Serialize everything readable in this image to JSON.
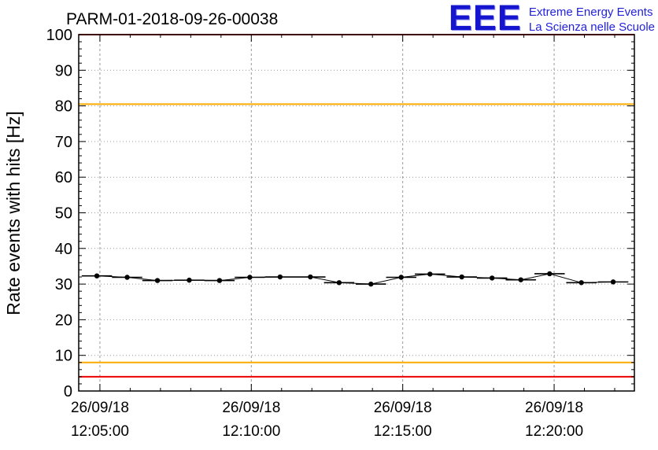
{
  "logo": {
    "wordmark": "EEE",
    "tagline1": "Extreme Energy Events",
    "tagline2": "La Scienza nelle Scuole"
  },
  "chart_data": {
    "type": "line",
    "title": "PARM-01-2018-09-26-00038",
    "ylabel": "Rate events with hits [Hz]",
    "xlabel": "",
    "ylim": [
      0,
      100
    ],
    "y_tick_step": 10,
    "y_minor_step": 2,
    "grid": true,
    "legend": "none",
    "x_range_minutes": [
      4.3,
      22.65
    ],
    "x_minor_step_minutes": 1,
    "x_major_ticks": [
      {
        "minute": 5,
        "date": "26/09/18",
        "time": "12:05:00"
      },
      {
        "minute": 10,
        "date": "26/09/18",
        "time": "12:10:00"
      },
      {
        "minute": 15,
        "date": "26/09/18",
        "time": "12:15:00"
      },
      {
        "minute": 20,
        "date": "26/09/18",
        "time": "12:20:00"
      }
    ],
    "threshold_lines": [
      {
        "y": 100,
        "color": "#ee0000"
      },
      {
        "y": 80.5,
        "color": "#ffaa00"
      },
      {
        "y": 8,
        "color": "#ffaa00"
      },
      {
        "y": 4,
        "color": "#ee0000"
      }
    ],
    "series": [
      {
        "name": "rate-events-with-hits",
        "color": "#000000",
        "marker": "circle",
        "xerr_minutes": 0.5,
        "points": [
          {
            "t": 4.9,
            "y": 32.3
          },
          {
            "t": 5.9,
            "y": 31.9
          },
          {
            "t": 6.9,
            "y": 31.0
          },
          {
            "t": 7.95,
            "y": 31.1
          },
          {
            "t": 8.95,
            "y": 31.0
          },
          {
            "t": 9.95,
            "y": 31.9
          },
          {
            "t": 10.95,
            "y": 32.0
          },
          {
            "t": 11.95,
            "y": 32.0
          },
          {
            "t": 12.9,
            "y": 30.4
          },
          {
            "t": 13.95,
            "y": 30.0
          },
          {
            "t": 14.95,
            "y": 31.9
          },
          {
            "t": 15.9,
            "y": 32.8
          },
          {
            "t": 16.95,
            "y": 32.0
          },
          {
            "t": 17.95,
            "y": 31.7
          },
          {
            "t": 18.9,
            "y": 31.2
          },
          {
            "t": 19.85,
            "y": 32.9
          },
          {
            "t": 20.9,
            "y": 30.4
          },
          {
            "t": 21.95,
            "y": 30.6
          }
        ]
      }
    ]
  }
}
